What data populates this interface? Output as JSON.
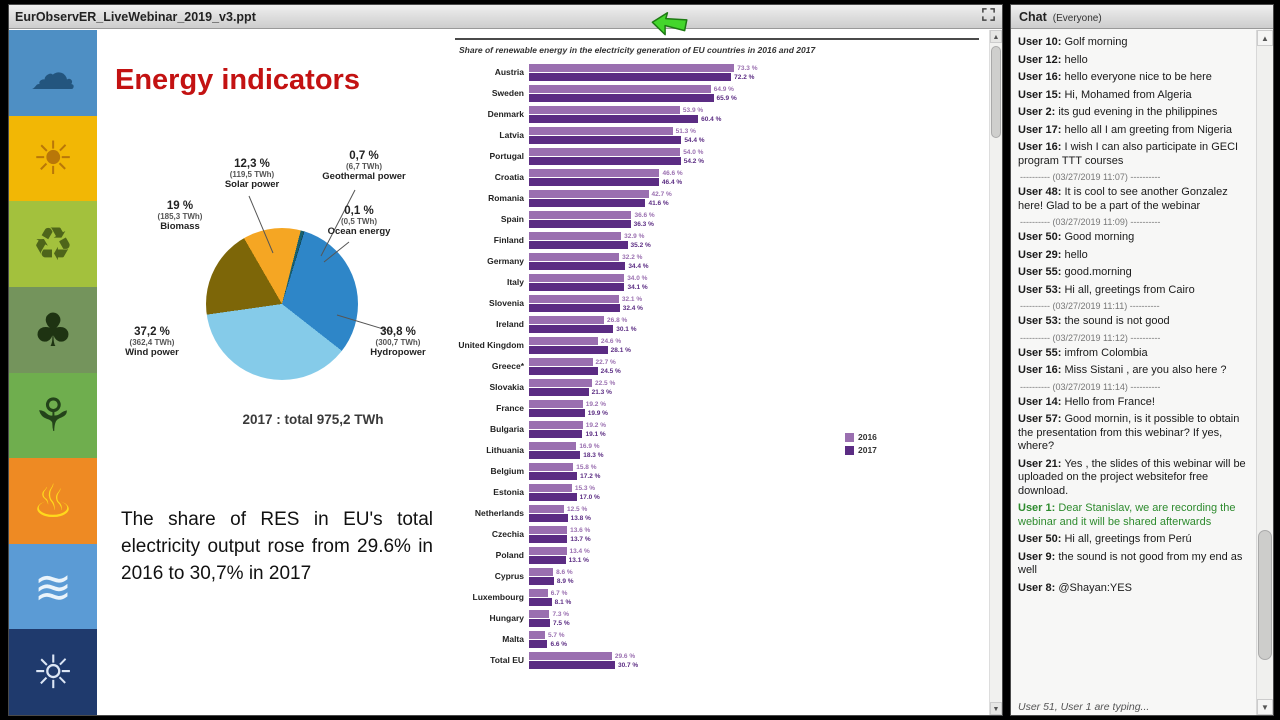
{
  "window": {
    "title": "EurObservER_LiveWebinar_2019_v3.ppt"
  },
  "icons": {
    "up": "▲",
    "down": "▼"
  },
  "slide": {
    "title": "Energy indicators",
    "body_text": "The share of RES in EU's total electricity output rose from 29.6% in 2016 to 30,7% in 2017",
    "sidebar_icons": [
      {
        "name": "wind-energy",
        "glyph": "☁",
        "bg": "#4e8fc4",
        "fg": "#23557e"
      },
      {
        "name": "solar-energy",
        "glyph": "☀",
        "bg": "#f2b705",
        "fg": "#b97708"
      },
      {
        "name": "biomass-energy",
        "glyph": "♻",
        "bg": "#a3c13d",
        "fg": "#4e651a"
      },
      {
        "name": "forest-energy",
        "glyph": "♣",
        "bg": "#74945c",
        "fg": "#1e3312"
      },
      {
        "name": "plant-energy",
        "glyph": "⚘",
        "bg": "#6fae4e",
        "fg": "#23431a"
      },
      {
        "name": "geothermal-energy",
        "glyph": "♨",
        "bg": "#ee8a23",
        "fg": "#ffd91c"
      },
      {
        "name": "ocean-energy",
        "glyph": "≋",
        "bg": "#5b9bd5",
        "fg": "#eaf4fb"
      },
      {
        "name": "sun-energy",
        "glyph": "☼",
        "bg": "#1f3a6d",
        "fg": "#dce6f5"
      }
    ]
  },
  "chart_data": [
    {
      "type": "pie",
      "title": "2017 : total 975,2 TWh",
      "unit": "%",
      "slices": [
        {
          "label": "Solar power",
          "value": 12.3,
          "pct": "12,3 %",
          "twh": "(119,5 TWh)",
          "color": "#f5a623"
        },
        {
          "label": "Geothermal power",
          "value": 0.7,
          "pct": "0,7 %",
          "twh": "(6,7 TWh)",
          "color": "#16606e"
        },
        {
          "label": "Ocean energy",
          "value": 0.1,
          "pct": "0,1 %",
          "twh": "(0,5 TWh)",
          "color": "#0a2f3c"
        },
        {
          "label": "Hydropower",
          "value": 30.8,
          "pct": "30,8 %",
          "twh": "(300,7 TWh)",
          "color": "#2e86c8"
        },
        {
          "label": "Wind power",
          "value": 37.2,
          "pct": "37,2 %",
          "twh": "(362,4 TWh)",
          "color": "#85cbe9"
        },
        {
          "label": "Biomass",
          "value": 19.0,
          "pct": "19 %",
          "twh": "(185,3 TWh)",
          "color": "#7d6608"
        }
      ]
    },
    {
      "type": "bar",
      "orientation": "horizontal",
      "title": "Share of renewable energy in the electricity generation of EU countries in 2016 and 2017",
      "unit": "%",
      "xlim": [
        0,
        80
      ],
      "legend_position": "right-middle",
      "categories": [
        "Austria",
        "Sweden",
        "Denmark",
        "Latvia",
        "Portugal",
        "Croatia",
        "Romania",
        "Spain",
        "Finland",
        "Germany",
        "Italy",
        "Slovenia",
        "Ireland",
        "United Kingdom",
        "Greece*",
        "Slovakia",
        "France",
        "Bulgaria",
        "Lithuania",
        "Belgium",
        "Estonia",
        "Netherlands",
        "Czechia",
        "Poland",
        "Cyprus",
        "Luxembourg",
        "Hungary",
        "Malta",
        "Total EU"
      ],
      "series": [
        {
          "name": "2016",
          "color": "#9a6fb0",
          "values": [
            73.3,
            64.9,
            53.9,
            51.3,
            54.0,
            46.6,
            42.7,
            36.6,
            32.9,
            32.2,
            34.0,
            32.1,
            26.8,
            24.6,
            22.7,
            22.5,
            19.2,
            19.2,
            16.9,
            15.8,
            15.3,
            12.5,
            13.6,
            13.4,
            8.6,
            6.7,
            7.3,
            5.7,
            29.6
          ]
        },
        {
          "name": "2017",
          "color": "#5b2c83",
          "values": [
            72.2,
            65.9,
            60.4,
            54.4,
            54.2,
            46.4,
            41.6,
            36.3,
            35.2,
            34.4,
            34.1,
            32.4,
            30.1,
            28.1,
            24.5,
            21.3,
            19.9,
            19.1,
            18.3,
            17.2,
            17.0,
            13.8,
            13.7,
            13.1,
            8.9,
            8.1,
            7.5,
            6.6,
            30.7
          ]
        }
      ]
    }
  ],
  "chat": {
    "header": "Chat",
    "scope": "(Everyone)",
    "typing": "User 51, User 1 are typing...",
    "messages": [
      {
        "user": "User 10",
        "text": "Golf morning"
      },
      {
        "user": "User 12",
        "text": "hello"
      },
      {
        "user": "User 16",
        "text": "hello everyone nice to be here"
      },
      {
        "user": "User 15",
        "text": "Hi, Mohamed from Algeria"
      },
      {
        "user": "User 2",
        "text": "its gud evening in the philippines"
      },
      {
        "user": "User 17",
        "text": "hello all I am greeting from Nigeria"
      },
      {
        "user": "User 16",
        "text": "I wish I can also participate in GECI program TTT courses",
        "ts": "---------- (03/27/2019 11:07) ----------"
      },
      {
        "user": "User 48",
        "text": "It is cool to see another Gonzalez here! Glad to be a part of the webinar",
        "ts": "---------- (03/27/2019 11:09) ----------"
      },
      {
        "user": "User 50",
        "text": "Good morning"
      },
      {
        "user": "User 29",
        "text": "hello"
      },
      {
        "user": "User 55",
        "text": "good.morning"
      },
      {
        "user": "User 53",
        "text": "Hi all, greetings from Cairo",
        "ts": "---------- (03/27/2019 11:11) ----------"
      },
      {
        "user": "User 53",
        "text": "the sound is not good",
        "ts": "---------- (03/27/2019 11:12) ----------"
      },
      {
        "user": "User 55",
        "text": "imfrom Colombia"
      },
      {
        "user": "User 16",
        "text": "Miss Sistani , are you also here ?",
        "ts": "---------- (03/27/2019 11:14) ----------"
      },
      {
        "user": "User 14",
        "text": "Hello from France!"
      },
      {
        "user": "User 57",
        "text": "Good mornin, is it possible to obtain the presentation  from this webinar? If yes, where?"
      },
      {
        "user": "User 21",
        "text": "Yes , the slides of this webinar will be uploaded on the project websitefor free download."
      },
      {
        "user": "User 1",
        "text": "Dear Stanislav, we are recording the webinar and it will be shared afterwards",
        "color": "#2e8b2e"
      },
      {
        "user": "User 50",
        "text": "Hi all, greetings from Perú"
      },
      {
        "user": "User 9",
        "text": "the sound is not good  from my  end as well"
      },
      {
        "user": "User 8",
        "text": "@Shayan:YES"
      }
    ]
  }
}
